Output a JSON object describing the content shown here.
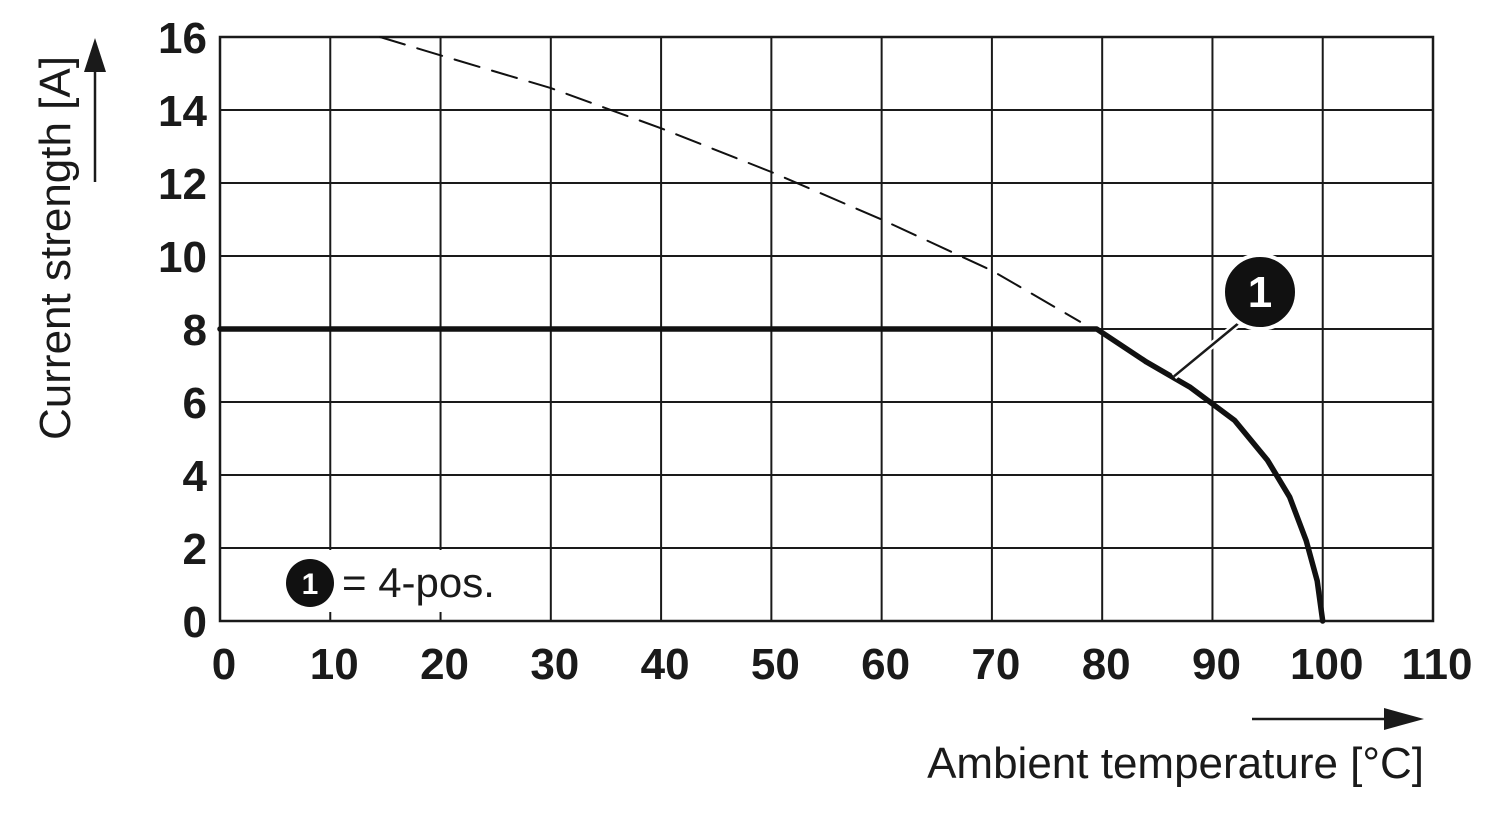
{
  "chart_data": {
    "type": "line",
    "xlabel": "Ambient temperature [°C]",
    "ylabel": "Current strength [A]",
    "xlim": [
      0,
      110
    ],
    "ylim": [
      0,
      16
    ],
    "x_ticks": [
      0,
      10,
      20,
      30,
      40,
      50,
      60,
      70,
      80,
      90,
      100,
      110
    ],
    "y_ticks": [
      0,
      2,
      4,
      6,
      8,
      10,
      12,
      14,
      16
    ],
    "grid": true,
    "series": [
      {
        "label": "1",
        "style": "solid",
        "points": [
          [
            0,
            8
          ],
          [
            79.5,
            8
          ],
          [
            84,
            7.1
          ],
          [
            88,
            6.4
          ],
          [
            92,
            5.5
          ],
          [
            95,
            4.4
          ],
          [
            97,
            3.4
          ],
          [
            98.5,
            2.2
          ],
          [
            99.5,
            1.1
          ],
          [
            100,
            0
          ]
        ]
      },
      {
        "label": "",
        "style": "dashed",
        "points": [
          [
            14.5,
            16
          ],
          [
            20,
            15.5
          ],
          [
            30,
            14.6
          ],
          [
            40,
            13.5
          ],
          [
            50,
            12.3
          ],
          [
            60,
            11
          ],
          [
            70,
            9.6
          ],
          [
            78,
            8.2
          ]
        ]
      }
    ],
    "callout": {
      "label": "1",
      "series_index": 0
    },
    "legend": {
      "position": "bottom-left",
      "marker": "1",
      "text": "= 4-pos."
    }
  }
}
